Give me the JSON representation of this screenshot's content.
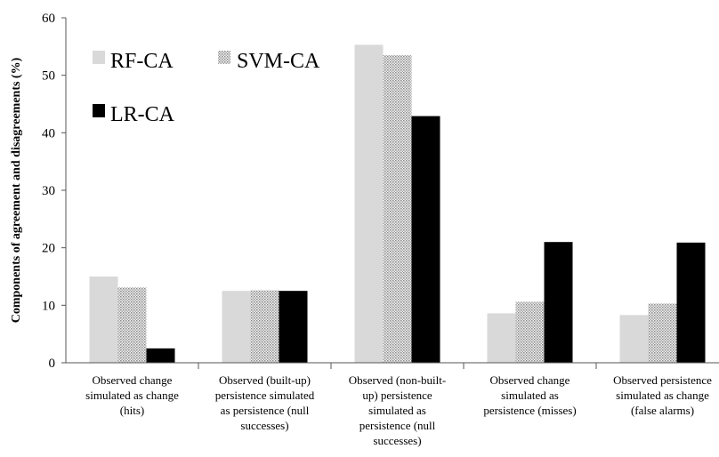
{
  "chart_data": {
    "type": "bar",
    "ylabel": "Components of agreement and disagreements (%)",
    "xlabel": "",
    "ylim": [
      0,
      60
    ],
    "yticks": [
      0,
      10,
      20,
      30,
      40,
      50,
      60
    ],
    "grid": false,
    "legend_position": "top-left",
    "categories": [
      [
        "Observed change",
        "simulated as change",
        "(hits)"
      ],
      [
        "Observed (built-up)",
        "persistence simulated",
        "as persistence (null",
        "successes)"
      ],
      [
        "Observed (non-built-",
        "up) persistence",
        "simulated as",
        "persistence (null",
        "successes)"
      ],
      [
        "Observed change",
        "simulated as",
        "persistence (misses)"
      ],
      [
        "Observed persistence",
        "simulated as change",
        "(false alarms)"
      ]
    ],
    "series": [
      {
        "name": "RF-CA",
        "values": [
          15.0,
          12.5,
          55.3,
          8.6,
          8.3
        ],
        "color": "#d9d9d9",
        "pattern": "solid"
      },
      {
        "name": "SVM-CA",
        "values": [
          13.1,
          12.6,
          53.5,
          10.6,
          10.3
        ],
        "color": "#c8c8c8",
        "pattern": "dotted"
      },
      {
        "name": "LR-CA",
        "values": [
          2.5,
          12.5,
          42.9,
          21.0,
          20.9
        ],
        "color": "#000000",
        "pattern": "solid"
      }
    ]
  }
}
